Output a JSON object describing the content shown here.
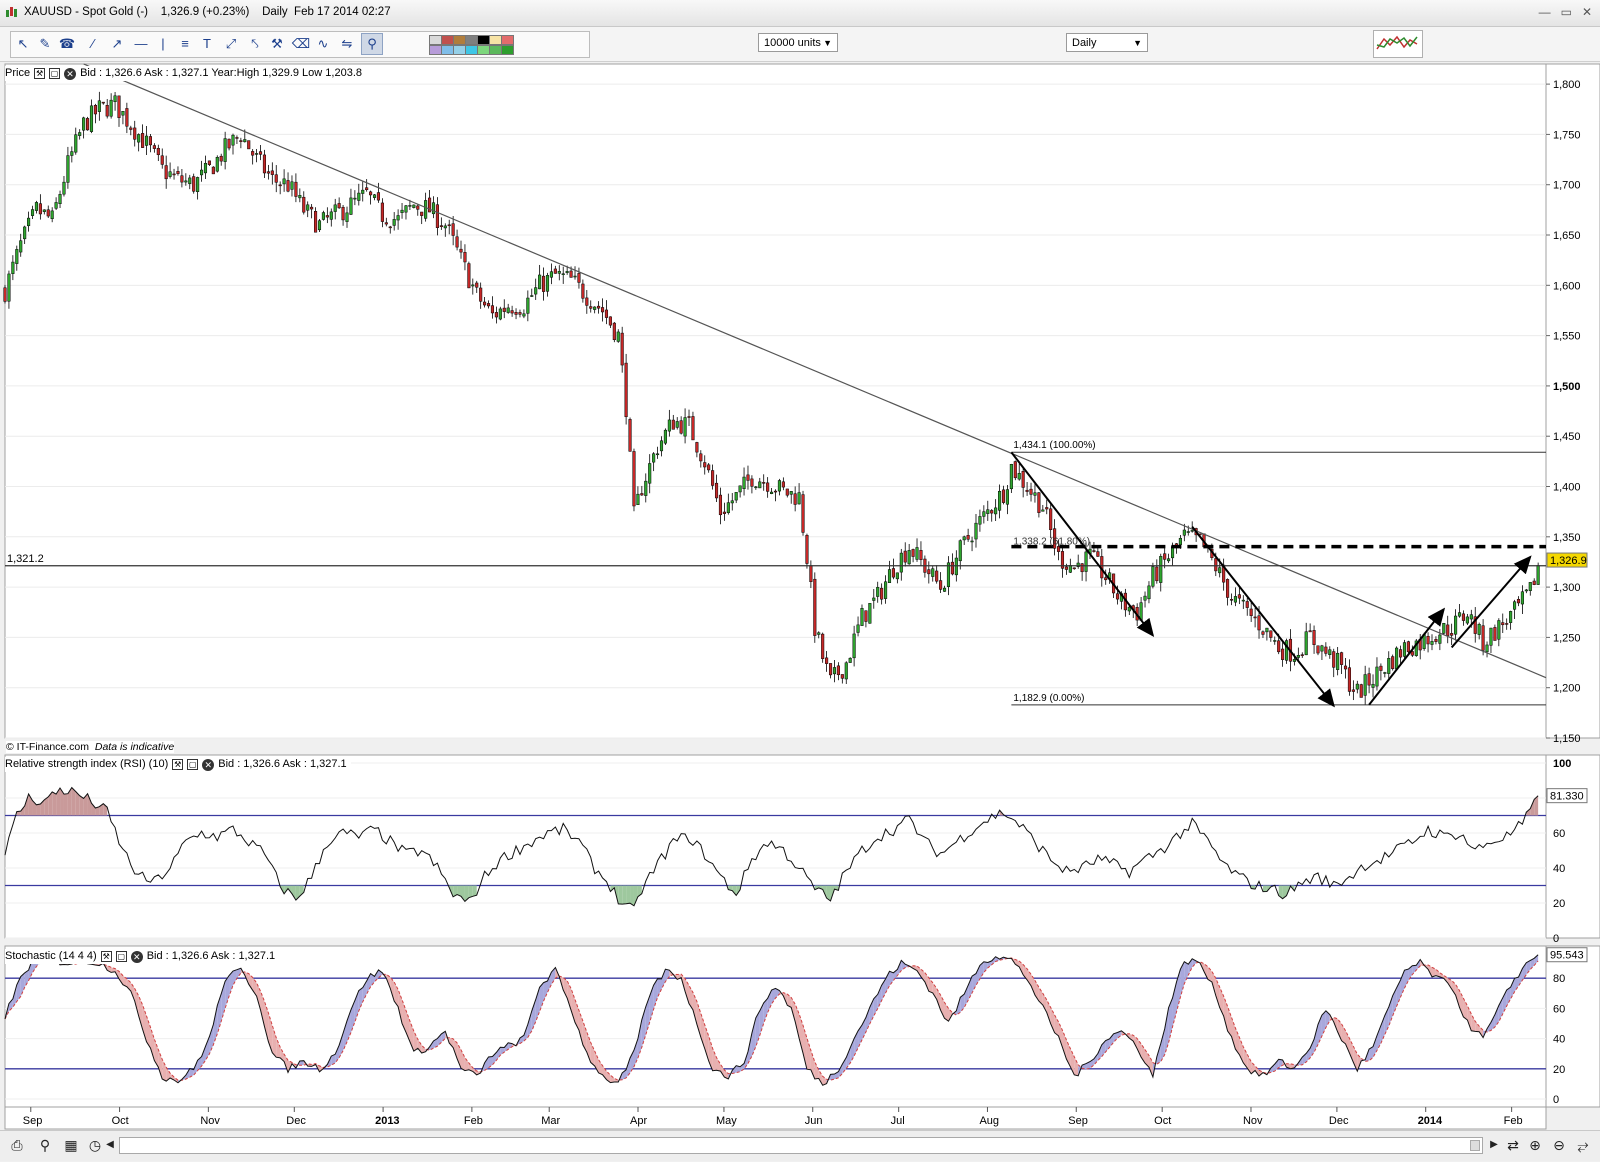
{
  "window": {
    "title": "XAUUSD - Spot Gold (-)",
    "quote": "1,326.9 (+0.23%)",
    "interval": "Daily",
    "datetime": "Feb 17 2014 02:27"
  },
  "toolbar": {
    "units_value": "10000 units",
    "interval_value": "Daily",
    "swatch_colors": [
      "#d9d9d9",
      "#c0504d",
      "#b07d3c",
      "#7f7f7f",
      "#000000",
      "#f7e3a5",
      "#e36c6c",
      "#b79cd9",
      "#7fbde9",
      "#95d0e8",
      "#3ec6e6",
      "#7dd67d",
      "#5cb85c",
      "#2e9e2e"
    ]
  },
  "price_panel": {
    "label": "Price",
    "info": "Bid : 1,326.6 Ask : 1,327.1  Year:High 1,329.9 Low 1,203.8",
    "copyright": "© IT-Finance.com",
    "disclaimer": "Data is indicative",
    "hline_label": "1,321.2",
    "last_price": "1,326.9",
    "fib_top": "1,434.1 (100.00%)",
    "fib_mid": "1,338.2 (61.80%)",
    "fib_bottom": "1,182.9 (0.00%)"
  },
  "rsi_panel": {
    "label": "Relative strength index (RSI) (10)",
    "info": "Bid : 1,326.6 Ask : 1,327.1",
    "last_value": "81.330"
  },
  "stoch_panel": {
    "label": "Stochastic (14 4 4)",
    "info": "Bid : 1,326.6 Ask : 1,327.1",
    "last_value": "95.543"
  },
  "chart_data": [
    {
      "type": "candlestick",
      "series_name": "XAUUSD - Spot Gold",
      "x_tick_labels": [
        "Sep",
        "Oct",
        "Nov",
        "Dec",
        "2013",
        "Feb",
        "Mar",
        "Apr",
        "May",
        "Jun",
        "Jul",
        "Aug",
        "Sep",
        "Oct",
        "Nov",
        "Dec",
        "2014",
        "Feb"
      ],
      "y_tick_labels": [
        "1,150",
        "1,200",
        "1,250",
        "1,300",
        "1,350",
        "1,400",
        "1,450",
        "1,500",
        "1,550",
        "1,600",
        "1,650",
        "1,700",
        "1,750",
        "1,800"
      ],
      "ylim": [
        1150,
        1820
      ],
      "close_path": [
        [
          0,
          1595
        ],
        [
          4,
          1640
        ],
        [
          8,
          1675
        ],
        [
          12,
          1665
        ],
        [
          16,
          1720
        ],
        [
          20,
          1760
        ],
        [
          24,
          1775
        ],
        [
          28,
          1780
        ],
        [
          32,
          1760
        ],
        [
          36,
          1740
        ],
        [
          40,
          1715
        ],
        [
          44,
          1705
        ],
        [
          48,
          1700
        ],
        [
          52,
          1715
        ],
        [
          56,
          1735
        ],
        [
          60,
          1750
        ],
        [
          64,
          1725
        ],
        [
          68,
          1705
        ],
        [
          72,
          1700
        ],
        [
          76,
          1675
        ],
        [
          80,
          1660
        ],
        [
          84,
          1670
        ],
        [
          88,
          1680
        ],
        [
          92,
          1690
        ],
        [
          96,
          1670
        ],
        [
          100,
          1665
        ],
        [
          104,
          1680
        ],
        [
          108,
          1675
        ],
        [
          112,
          1660
        ],
        [
          116,
          1625
        ],
        [
          120,
          1590
        ],
        [
          124,
          1570
        ],
        [
          128,
          1580
        ],
        [
          132,
          1580
        ],
        [
          136,
          1600
        ],
        [
          140,
          1610
        ],
        [
          144,
          1605
        ],
        [
          148,
          1590
        ],
        [
          152,
          1575
        ],
        [
          156,
          1550
        ],
        [
          158,
          1480
        ],
        [
          160,
          1370
        ],
        [
          162,
          1400
        ],
        [
          166,
          1440
        ],
        [
          170,
          1465
        ],
        [
          174,
          1460
        ],
        [
          178,
          1425
        ],
        [
          182,
          1375
        ],
        [
          186,
          1390
        ],
        [
          190,
          1410
        ],
        [
          194,
          1405
        ],
        [
          198,
          1395
        ],
        [
          202,
          1390
        ],
        [
          204,
          1330
        ],
        [
          206,
          1260
        ],
        [
          208,
          1230
        ],
        [
          210,
          1205
        ],
        [
          214,
          1225
        ],
        [
          218,
          1270
        ],
        [
          222,
          1290
        ],
        [
          226,
          1320
        ],
        [
          230,
          1340
        ],
        [
          234,
          1320
        ],
        [
          238,
          1300
        ],
        [
          242,
          1330
        ],
        [
          246,
          1355
        ],
        [
          250,
          1375
        ],
        [
          254,
          1395
        ],
        [
          256,
          1420
        ],
        [
          260,
          1400
        ],
        [
          264,
          1380
        ],
        [
          268,
          1330
        ],
        [
          272,
          1320
        ],
        [
          276,
          1330
        ],
        [
          280,
          1310
        ],
        [
          284,
          1285
        ],
        [
          288,
          1275
        ],
        [
          292,
          1310
        ],
        [
          296,
          1330
        ],
        [
          300,
          1350
        ],
        [
          304,
          1345
        ],
        [
          308,
          1320
        ],
        [
          312,
          1290
        ],
        [
          316,
          1275
        ],
        [
          320,
          1260
        ],
        [
          324,
          1240
        ],
        [
          328,
          1235
        ],
        [
          332,
          1250
        ],
        [
          336,
          1235
        ],
        [
          340,
          1220
        ],
        [
          342,
          1205
        ],
        [
          344,
          1195
        ],
        [
          348,
          1210
        ],
        [
          352,
          1225
        ],
        [
          356,
          1240
        ],
        [
          360,
          1245
        ],
        [
          364,
          1255
        ],
        [
          368,
          1260
        ],
        [
          372,
          1275
        ],
        [
          376,
          1245
        ],
        [
          380,
          1260
        ],
        [
          384,
          1275
        ],
        [
          388,
          1295
        ],
        [
          390,
          1321
        ]
      ],
      "hline": 1321.2,
      "last": 1326.9,
      "fibonacci": [
        {
          "level": "100.00%",
          "value": 1434.1
        },
        {
          "level": "61.80%",
          "value": 1338.2
        },
        {
          "level": "0.00%",
          "value": 1182.9
        }
      ],
      "trendline": [
        [
          20,
          1820
        ],
        [
          392,
          1210
        ]
      ],
      "resistance_dashed": 1338
    },
    {
      "type": "line",
      "series_name": "Relative strength index (RSI) (10)",
      "y_tick_labels": [
        "0",
        "20",
        "40",
        "60",
        "80",
        "100"
      ],
      "ylim": [
        0,
        100
      ],
      "levels": [
        30,
        70
      ],
      "path": [
        [
          0,
          48
        ],
        [
          3,
          70
        ],
        [
          6,
          80
        ],
        [
          10,
          78
        ],
        [
          14,
          85
        ],
        [
          18,
          83
        ],
        [
          22,
          78
        ],
        [
          26,
          72
        ],
        [
          30,
          50
        ],
        [
          34,
          35
        ],
        [
          38,
          32
        ],
        [
          42,
          40
        ],
        [
          46,
          55
        ],
        [
          50,
          60
        ],
        [
          54,
          58
        ],
        [
          58,
          62
        ],
        [
          62,
          55
        ],
        [
          66,
          48
        ],
        [
          70,
          30
        ],
        [
          74,
          22
        ],
        [
          78,
          35
        ],
        [
          82,
          55
        ],
        [
          86,
          60
        ],
        [
          90,
          58
        ],
        [
          94,
          62
        ],
        [
          98,
          55
        ],
        [
          102,
          48
        ],
        [
          106,
          50
        ],
        [
          110,
          40
        ],
        [
          114,
          25
        ],
        [
          118,
          20
        ],
        [
          122,
          35
        ],
        [
          126,
          45
        ],
        [
          130,
          50
        ],
        [
          134,
          55
        ],
        [
          138,
          60
        ],
        [
          142,
          62
        ],
        [
          146,
          55
        ],
        [
          150,
          40
        ],
        [
          154,
          30
        ],
        [
          156,
          22
        ],
        [
          158,
          18
        ],
        [
          160,
          15
        ],
        [
          162,
          28
        ],
        [
          166,
          42
        ],
        [
          170,
          55
        ],
        [
          174,
          58
        ],
        [
          178,
          48
        ],
        [
          182,
          35
        ],
        [
          186,
          25
        ],
        [
          190,
          45
        ],
        [
          194,
          55
        ],
        [
          198,
          50
        ],
        [
          202,
          40
        ],
        [
          206,
          28
        ],
        [
          210,
          22
        ],
        [
          214,
          38
        ],
        [
          218,
          50
        ],
        [
          222,
          58
        ],
        [
          226,
          62
        ],
        [
          230,
          68
        ],
        [
          234,
          55
        ],
        [
          238,
          48
        ],
        [
          242,
          55
        ],
        [
          246,
          62
        ],
        [
          250,
          68
        ],
        [
          254,
          72
        ],
        [
          258,
          65
        ],
        [
          262,
          55
        ],
        [
          266,
          45
        ],
        [
          270,
          38
        ],
        [
          274,
          40
        ],
        [
          278,
          45
        ],
        [
          282,
          42
        ],
        [
          286,
          38
        ],
        [
          290,
          45
        ],
        [
          294,
          50
        ],
        [
          298,
          58
        ],
        [
          302,
          65
        ],
        [
          306,
          55
        ],
        [
          310,
          42
        ],
        [
          314,
          35
        ],
        [
          318,
          30
        ],
        [
          322,
          28
        ],
        [
          326,
          25
        ],
        [
          330,
          32
        ],
        [
          334,
          35
        ],
        [
          338,
          30
        ],
        [
          342,
          35
        ],
        [
          346,
          42
        ],
        [
          350,
          45
        ],
        [
          354,
          50
        ],
        [
          358,
          55
        ],
        [
          362,
          62
        ],
        [
          366,
          58
        ],
        [
          370,
          60
        ],
        [
          374,
          50
        ],
        [
          378,
          55
        ],
        [
          382,
          58
        ],
        [
          386,
          65
        ],
        [
          390,
          80
        ]
      ],
      "last": 81.33
    },
    {
      "type": "line",
      "series_name": "Stochastic (14 4 4)",
      "y_tick_labels": [
        "0",
        "20",
        "40",
        "60",
        "80"
      ],
      "ylim": [
        0,
        100
      ],
      "levels": [
        20,
        80
      ],
      "path": [
        [
          0,
          55
        ],
        [
          4,
          80
        ],
        [
          8,
          95
        ],
        [
          12,
          92
        ],
        [
          16,
          90
        ],
        [
          20,
          92
        ],
        [
          24,
          90
        ],
        [
          28,
          85
        ],
        [
          32,
          70
        ],
        [
          36,
          40
        ],
        [
          40,
          15
        ],
        [
          44,
          12
        ],
        [
          48,
          20
        ],
        [
          52,
          40
        ],
        [
          56,
          80
        ],
        [
          60,
          85
        ],
        [
          64,
          70
        ],
        [
          68,
          30
        ],
        [
          72,
          20
        ],
        [
          76,
          25
        ],
        [
          80,
          20
        ],
        [
          84,
          30
        ],
        [
          88,
          60
        ],
        [
          92,
          80
        ],
        [
          96,
          85
        ],
        [
          100,
          60
        ],
        [
          104,
          30
        ],
        [
          108,
          35
        ],
        [
          112,
          45
        ],
        [
          116,
          20
        ],
        [
          120,
          15
        ],
        [
          124,
          30
        ],
        [
          128,
          35
        ],
        [
          132,
          40
        ],
        [
          136,
          75
        ],
        [
          140,
          85
        ],
        [
          144,
          60
        ],
        [
          148,
          30
        ],
        [
          152,
          15
        ],
        [
          156,
          10
        ],
        [
          160,
          30
        ],
        [
          164,
          70
        ],
        [
          168,
          85
        ],
        [
          172,
          80
        ],
        [
          176,
          50
        ],
        [
          180,
          20
        ],
        [
          184,
          15
        ],
        [
          188,
          25
        ],
        [
          192,
          60
        ],
        [
          196,
          75
        ],
        [
          200,
          60
        ],
        [
          204,
          20
        ],
        [
          208,
          10
        ],
        [
          212,
          20
        ],
        [
          216,
          40
        ],
        [
          220,
          60
        ],
        [
          224,
          80
        ],
        [
          228,
          90
        ],
        [
          232,
          85
        ],
        [
          236,
          70
        ],
        [
          240,
          50
        ],
        [
          244,
          70
        ],
        [
          248,
          90
        ],
        [
          252,
          95
        ],
        [
          256,
          92
        ],
        [
          260,
          80
        ],
        [
          264,
          60
        ],
        [
          268,
          40
        ],
        [
          272,
          15
        ],
        [
          276,
          25
        ],
        [
          280,
          40
        ],
        [
          284,
          45
        ],
        [
          288,
          35
        ],
        [
          292,
          15
        ],
        [
          296,
          60
        ],
        [
          300,
          92
        ],
        [
          304,
          90
        ],
        [
          308,
          70
        ],
        [
          312,
          40
        ],
        [
          316,
          20
        ],
        [
          320,
          15
        ],
        [
          324,
          25
        ],
        [
          328,
          20
        ],
        [
          332,
          35
        ],
        [
          336,
          60
        ],
        [
          340,
          40
        ],
        [
          344,
          20
        ],
        [
          348,
          35
        ],
        [
          352,
          60
        ],
        [
          356,
          85
        ],
        [
          360,
          90
        ],
        [
          364,
          80
        ],
        [
          368,
          75
        ],
        [
          372,
          50
        ],
        [
          376,
          40
        ],
        [
          380,
          60
        ],
        [
          384,
          80
        ],
        [
          388,
          92
        ],
        [
          390,
          95
        ]
      ],
      "last": 95.543
    }
  ]
}
